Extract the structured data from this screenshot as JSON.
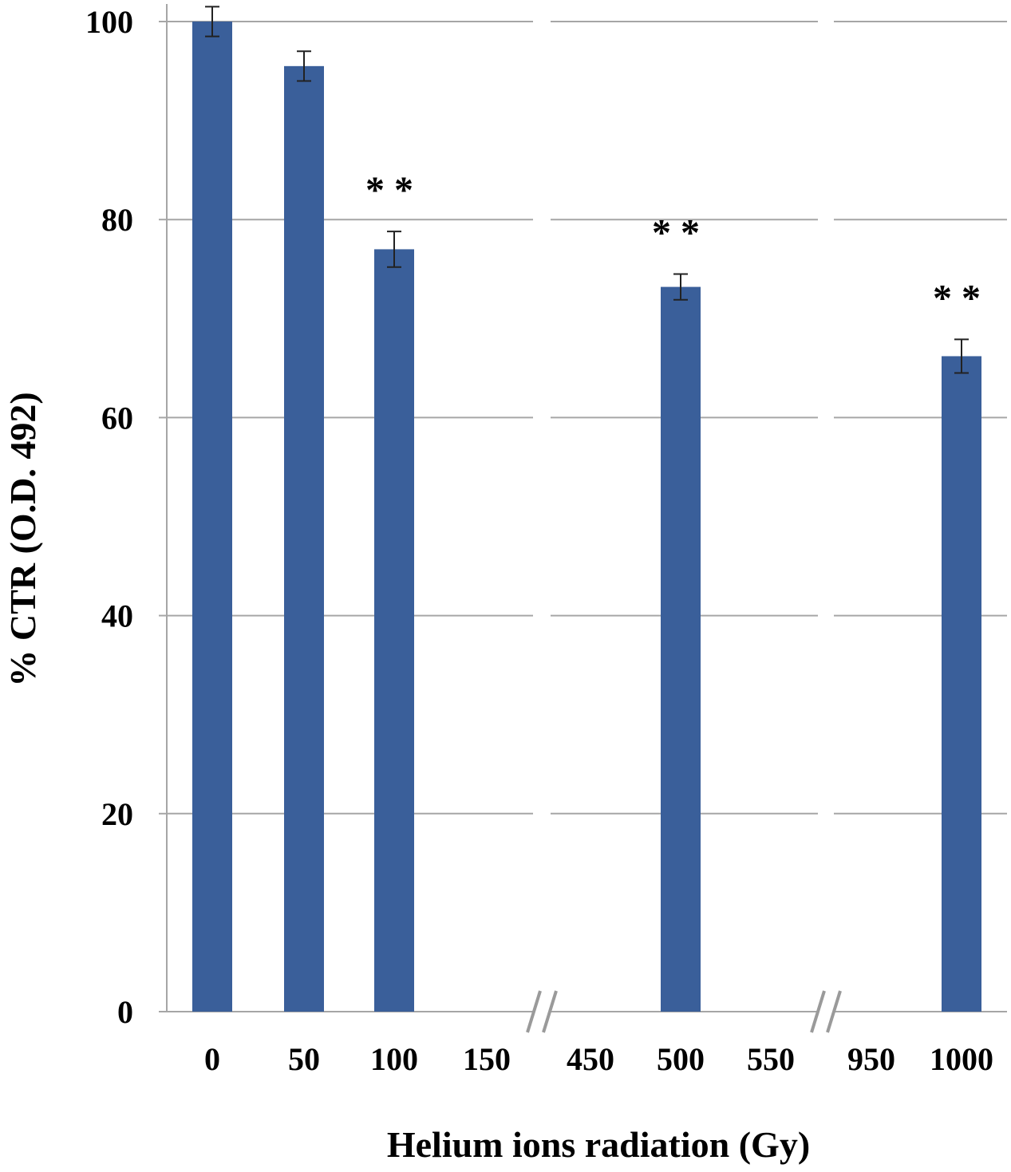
{
  "chart_data": {
    "type": "bar",
    "title": "",
    "xlabel": "Helium ions radiation (Gy)",
    "ylabel": "% CTR (O.D. 492)",
    "ylim": [
      0,
      100
    ],
    "yticks": [
      "0",
      "20",
      "40",
      "60",
      "80",
      "100"
    ],
    "grid": true,
    "bar_color": "#3A5F9A",
    "categories": [
      "0",
      "50",
      "100",
      "150",
      "450",
      "500",
      "550",
      "950",
      "1000"
    ],
    "values": [
      100,
      95.5,
      77,
      null,
      null,
      73.2,
      null,
      null,
      66.2
    ],
    "error": [
      1.5,
      1.5,
      1.8,
      null,
      null,
      1.3,
      null,
      null,
      1.7
    ],
    "significance": [
      "",
      "",
      "* *",
      "",
      "",
      "* *",
      "",
      "",
      "* *"
    ],
    "axis_breaks": [
      "between 150 and 450",
      "between 550 and 950"
    ],
    "axis_break_symbol": "//"
  }
}
